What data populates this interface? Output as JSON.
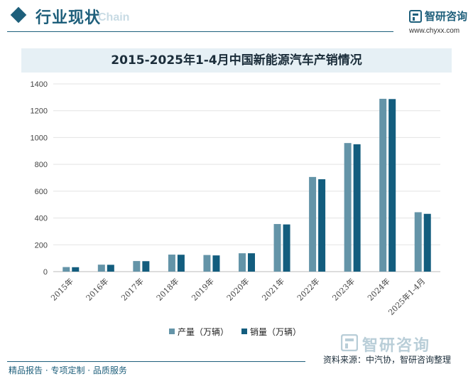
{
  "header": {
    "section_title": "行业现状",
    "section_bg_text": "Chain",
    "brand_name": "智研咨询",
    "brand_url": "www.chyxx.com"
  },
  "footer": {
    "left_text": "精品报告 · 专项定制 · 品质服务",
    "source_text": "资料来源：中汽协，智研咨询整理",
    "watermark_brand": "智研咨询"
  },
  "colors": {
    "production": "#6494a8",
    "sales": "#135d7e",
    "brand": "#1e5f7b"
  },
  "chart_data": {
    "type": "bar",
    "title": "2015-2025年1-4月中国新能源汽车产销情况",
    "categories": [
      "2015年",
      "2016年",
      "2017年",
      "2018年",
      "2019年",
      "2020年",
      "2021年",
      "2022年",
      "2023年",
      "2024年",
      "2025年1-4月"
    ],
    "series": [
      {
        "name": "产量（万辆）",
        "values": [
          34,
          52,
          79,
          127,
          124,
          137,
          355,
          706,
          959,
          1289,
          443
        ]
      },
      {
        "name": "销量（万辆）",
        "values": [
          33,
          51,
          78,
          126,
          121,
          137,
          352,
          689,
          950,
          1287,
          431
        ]
      }
    ],
    "yticks": [
      0,
      200,
      400,
      600,
      800,
      1000,
      1200,
      1400
    ],
    "ylim": [
      0,
      1400
    ],
    "grid": true,
    "legend": "bottom-center"
  }
}
